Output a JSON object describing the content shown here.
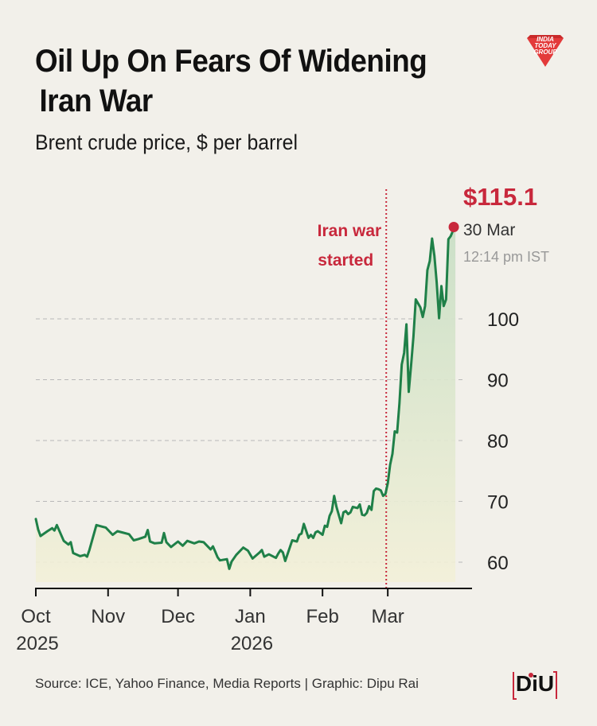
{
  "header": {
    "title_line1": "Oil Up On Fears Of Widening",
    "title_line2": "Iran War",
    "subtitle": "Brent crude price, $ per barrel",
    "logo_text": "INDIA TODAY GROUP"
  },
  "footer": {
    "source": "Source: ICE, Yahoo Finance, Media Reports | Graphic: Dipu Rai",
    "diu_logo": "DiU"
  },
  "colors": {
    "line": "#1f8048",
    "annotation": "#c8283c",
    "area_top": "#c9dfc6",
    "area_bottom": "#f3f0d8",
    "grid": "#b8b8b8"
  },
  "chart_data": {
    "type": "line",
    "title": "Oil Up On Fears Of Widening Iran War",
    "subtitle": "Brent crude price, $ per barrel",
    "xlabel": "",
    "ylabel": "",
    "x_ticks": [
      {
        "label": "Oct",
        "sub": "2025",
        "date": "2025-10-01"
      },
      {
        "label": "Nov",
        "sub": "",
        "date": "2025-11-01"
      },
      {
        "label": "Dec",
        "sub": "",
        "date": "2025-12-01"
      },
      {
        "label": "Jan",
        "sub": "2026",
        "date": "2026-01-01"
      },
      {
        "label": "Feb",
        "sub": "",
        "date": "2026-02-01"
      },
      {
        "label": "Mar",
        "sub": "",
        "date": "2026-03-01"
      }
    ],
    "y_ticks": [
      60,
      70,
      80,
      90,
      100
    ],
    "ylim": [
      56,
      118
    ],
    "xlim": [
      "2025-10-01",
      "2026-03-31"
    ],
    "grid": true,
    "series": [
      {
        "points": [
          [
            "2025-10-01",
            67.1
          ],
          [
            "2025-10-02",
            65.4
          ],
          [
            "2025-10-03",
            64.3
          ],
          [
            "2025-10-06",
            65.1
          ],
          [
            "2025-10-08",
            65.6
          ],
          [
            "2025-10-09",
            65.2
          ],
          [
            "2025-10-10",
            66.1
          ],
          [
            "2025-10-13",
            63.5
          ],
          [
            "2025-10-15",
            62.9
          ],
          [
            "2025-10-16",
            63.3
          ],
          [
            "2025-10-17",
            61.5
          ],
          [
            "2025-10-20",
            61.0
          ],
          [
            "2025-10-22",
            61.2
          ],
          [
            "2025-10-23",
            60.9
          ],
          [
            "2025-10-24",
            62.0
          ],
          [
            "2025-10-27",
            66.1
          ],
          [
            "2025-10-29",
            65.9
          ],
          [
            "2025-10-31",
            65.7
          ],
          [
            "2025-11-03",
            64.5
          ],
          [
            "2025-11-05",
            65.1
          ],
          [
            "2025-11-07",
            64.9
          ],
          [
            "2025-11-10",
            64.6
          ],
          [
            "2025-11-12",
            63.6
          ],
          [
            "2025-11-14",
            63.8
          ],
          [
            "2025-11-17",
            64.2
          ],
          [
            "2025-11-18",
            65.3
          ],
          [
            "2025-11-19",
            63.4
          ],
          [
            "2025-11-21",
            63.1
          ],
          [
            "2025-11-24",
            63.2
          ],
          [
            "2025-11-25",
            64.8
          ],
          [
            "2025-11-26",
            63.3
          ],
          [
            "2025-11-28",
            62.5
          ],
          [
            "2025-12-01",
            63.4
          ],
          [
            "2025-12-03",
            62.7
          ],
          [
            "2025-12-05",
            63.5
          ],
          [
            "2025-12-08",
            63.1
          ],
          [
            "2025-12-10",
            63.4
          ],
          [
            "2025-12-12",
            63.3
          ],
          [
            "2025-12-15",
            62.1
          ],
          [
            "2025-12-16",
            62.6
          ],
          [
            "2025-12-17",
            61.7
          ],
          [
            "2025-12-18",
            60.8
          ],
          [
            "2025-12-19",
            60.3
          ],
          [
            "2025-12-22",
            60.5
          ],
          [
            "2025-12-23",
            58.9
          ],
          [
            "2025-12-24",
            60.1
          ],
          [
            "2025-12-26",
            61.2
          ],
          [
            "2025-12-29",
            62.4
          ],
          [
            "2025-12-31",
            61.9
          ],
          [
            "2026-01-02",
            60.6
          ],
          [
            "2026-01-05",
            61.6
          ],
          [
            "2026-01-06",
            62.0
          ],
          [
            "2026-01-07",
            60.9
          ],
          [
            "2026-01-09",
            61.3
          ],
          [
            "2026-01-12",
            60.7
          ],
          [
            "2026-01-13",
            61.4
          ],
          [
            "2026-01-14",
            62.0
          ],
          [
            "2026-01-15",
            61.6
          ],
          [
            "2026-01-16",
            60.2
          ],
          [
            "2026-01-19",
            63.6
          ],
          [
            "2026-01-21",
            63.4
          ],
          [
            "2026-01-22",
            64.5
          ],
          [
            "2026-01-23",
            64.7
          ],
          [
            "2026-01-24",
            66.3
          ],
          [
            "2026-01-26",
            64.0
          ],
          [
            "2026-01-27",
            64.5
          ],
          [
            "2026-01-28",
            64.0
          ],
          [
            "2026-01-29",
            64.9
          ],
          [
            "2026-01-30",
            65.1
          ],
          [
            "2026-02-01",
            64.5
          ],
          [
            "2026-02-02",
            66.0
          ],
          [
            "2026-02-03",
            65.8
          ],
          [
            "2026-02-04",
            67.6
          ],
          [
            "2026-02-05",
            68.4
          ],
          [
            "2026-02-06",
            70.9
          ],
          [
            "2026-02-07",
            69.1
          ],
          [
            "2026-02-09",
            66.4
          ],
          [
            "2026-02-10",
            68.2
          ],
          [
            "2026-02-11",
            68.4
          ],
          [
            "2026-02-12",
            67.9
          ],
          [
            "2026-02-13",
            68.2
          ],
          [
            "2026-02-14",
            69.1
          ],
          [
            "2026-02-16",
            68.9
          ],
          [
            "2026-02-17",
            69.5
          ],
          [
            "2026-02-18",
            67.8
          ],
          [
            "2026-02-19",
            67.7
          ],
          [
            "2026-02-20",
            68.1
          ],
          [
            "2026-02-21",
            69.2
          ],
          [
            "2026-02-22",
            68.6
          ],
          [
            "2026-02-23",
            71.7
          ],
          [
            "2026-02-24",
            72.1
          ],
          [
            "2026-02-25",
            72.0
          ],
          [
            "2026-02-26",
            71.8
          ],
          [
            "2026-02-27",
            70.9
          ],
          [
            "2026-02-28",
            71.2
          ],
          [
            "2026-03-01",
            73.0
          ],
          [
            "2026-03-02",
            76.0
          ],
          [
            "2026-03-03",
            77.8
          ],
          [
            "2026-03-04",
            81.5
          ],
          [
            "2026-03-05",
            81.3
          ],
          [
            "2026-03-06",
            86.1
          ],
          [
            "2026-03-07",
            92.5
          ],
          [
            "2026-03-08",
            94.4
          ],
          [
            "2026-03-09",
            99.1
          ],
          [
            "2026-03-10",
            88.0
          ],
          [
            "2026-03-11",
            92.3
          ],
          [
            "2026-03-12",
            97.1
          ],
          [
            "2026-03-13",
            103.2
          ],
          [
            "2026-03-15",
            101.9
          ],
          [
            "2026-03-16",
            100.3
          ],
          [
            "2026-03-17",
            102.1
          ],
          [
            "2026-03-18",
            108.0
          ],
          [
            "2026-03-19",
            109.5
          ],
          [
            "2026-03-20",
            113.2
          ],
          [
            "2026-03-21",
            110.4
          ],
          [
            "2026-03-22",
            106.0
          ],
          [
            "2026-03-23",
            100.1
          ],
          [
            "2026-03-24",
            105.4
          ],
          [
            "2026-03-25",
            102.1
          ],
          [
            "2026-03-26",
            103.2
          ],
          [
            "2026-03-27",
            113.1
          ],
          [
            "2026-03-28",
            113.6
          ],
          [
            "2026-03-29",
            114.5
          ],
          [
            "2026-03-30",
            115.1
          ]
        ]
      }
    ],
    "annotations": [
      {
        "kind": "vline",
        "date": "2026-02-28",
        "line1": "Iran war",
        "line2": "started"
      }
    ],
    "latest": {
      "date": "2026-03-30",
      "value": 115.1,
      "value_label": "$115.1",
      "date_label": "30 Mar",
      "time_label": "12:14 pm IST"
    }
  }
}
